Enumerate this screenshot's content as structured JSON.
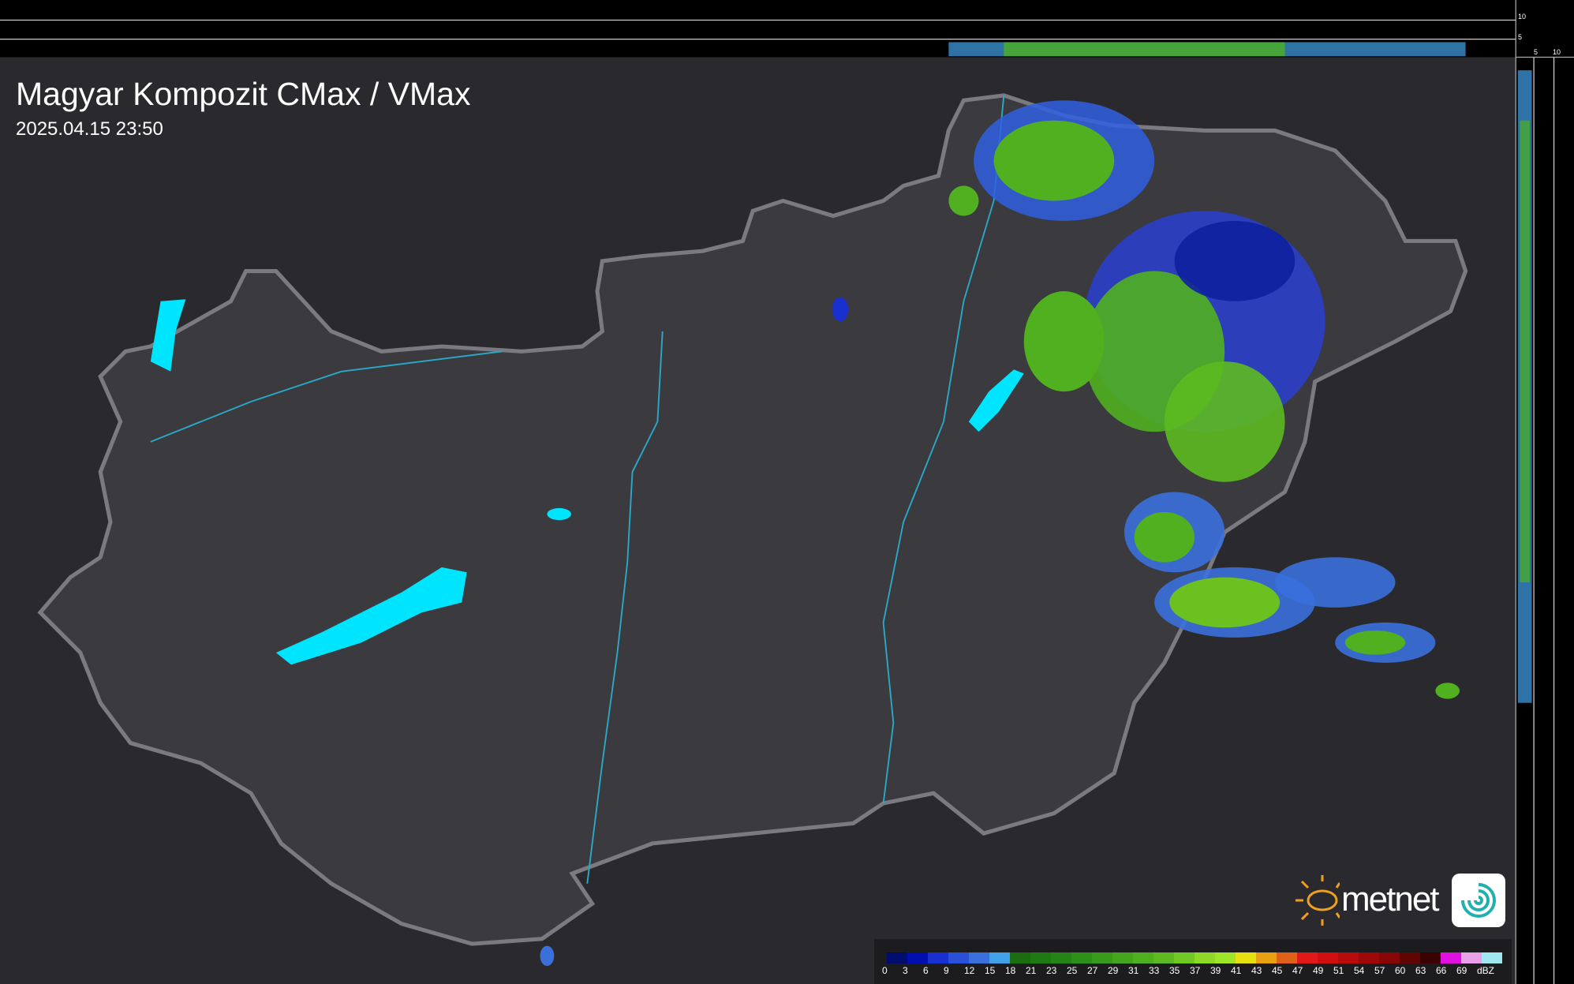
{
  "header": {
    "title": "Magyar Kompozit CMax / VMax",
    "timestamp": "2025.04.15 23:50"
  },
  "profile_scales": {
    "top_ticks": [
      "10",
      "5"
    ],
    "right_ticks": [
      "5",
      "10"
    ]
  },
  "logo": {
    "text": "metnet"
  },
  "legend": {
    "unit": "dBZ",
    "labels": [
      "0",
      "3",
      "6",
      "9",
      "12",
      "15",
      "18",
      "21",
      "23",
      "25",
      "27",
      "29",
      "31",
      "33",
      "35",
      "37",
      "39",
      "41",
      "43",
      "45",
      "47",
      "49",
      "51",
      "54",
      "57",
      "60",
      "63",
      "66",
      "69"
    ],
    "colors": [
      "#000d6e",
      "#0010b0",
      "#1a2fcf",
      "#2a4fd8",
      "#3a70dc",
      "#40a0e8",
      "#1a6e10",
      "#1e7a12",
      "#248516",
      "#2c8f18",
      "#379a1a",
      "#42a51c",
      "#4db01e",
      "#5cba20",
      "#70c822",
      "#8ed826",
      "#a0e628",
      "#e6e010",
      "#e8a010",
      "#e06018",
      "#e01818",
      "#d01010",
      "#b80c0c",
      "#a00808",
      "#880606",
      "#600404",
      "#3a0202",
      "#e010e0",
      "#e8a0e8",
      "#a0e8f0"
    ]
  },
  "colors": {
    "background": "#2a2a2e",
    "country": "#3a3a3f",
    "border": "#7a7a80",
    "water": "#00e0ff",
    "river": "#2aa8c8"
  }
}
